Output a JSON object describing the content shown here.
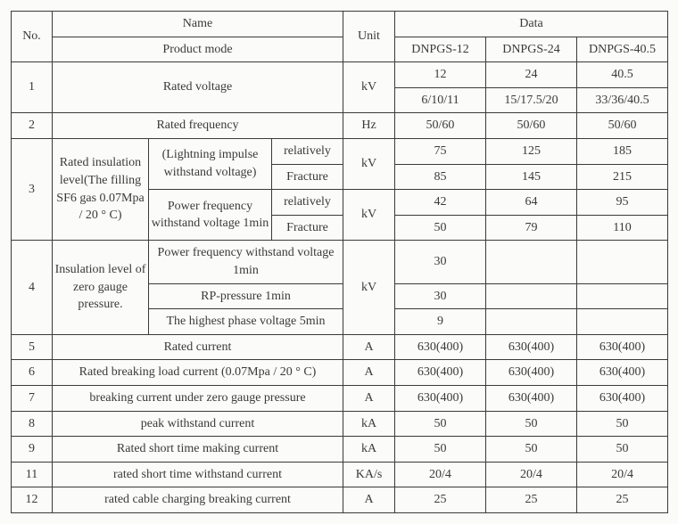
{
  "header": {
    "no": "No.",
    "name": "Name",
    "product_mode": "Product mode",
    "unit": "Unit",
    "data": "Data",
    "models": [
      "DNPGS-12",
      "DNPGS-24",
      "DNPGS-40.5"
    ]
  },
  "rows": {
    "r1": {
      "no": "1",
      "name": "Rated voltage",
      "unit": "kV",
      "line1": [
        "12",
        "24",
        "40.5"
      ],
      "line2": [
        "6/10/11",
        "15/17.5/20",
        "33/36/40.5"
      ]
    },
    "r2": {
      "no": "2",
      "name": "Rated frequency",
      "unit": "Hz",
      "vals": [
        "50/60",
        "50/60",
        "50/60"
      ]
    },
    "r3": {
      "no": "3",
      "group": "Rated insulation level(The filling SF6 gas 0.07Mpa / 20 ° C)",
      "sub1": "(Lightning impulse withstand voltage)",
      "sub2": "Power frequency withstand voltage 1min",
      "rel": "relatively",
      "fra": "Fracture",
      "unit": "kV",
      "s1rel": [
        "75",
        "125",
        "185"
      ],
      "s1fra": [
        "85",
        "145",
        "215"
      ],
      "s2rel": [
        "42",
        "64",
        "95"
      ],
      "s2fra": [
        "50",
        "79",
        "110"
      ]
    },
    "r4": {
      "no": "4",
      "group": "Insulation level of zero gauge pressure.",
      "sub1": "Power frequency withstand voltage 1min",
      "sub2": "RP-pressure 1min",
      "sub3": "The highest phase voltage 5min",
      "unit": "kV",
      "v1": [
        "30",
        "",
        ""
      ],
      "v2": [
        "30",
        "",
        ""
      ],
      "v3": [
        "9",
        "",
        ""
      ]
    },
    "r5": {
      "no": "5",
      "name": "Rated current",
      "unit": "A",
      "vals": [
        "630(400)",
        "630(400)",
        "630(400)"
      ]
    },
    "r6": {
      "no": "6",
      "name": "Rated breaking load current (0.07Mpa / 20 ° C)",
      "unit": "A",
      "vals": [
        "630(400)",
        "630(400)",
        "630(400)"
      ]
    },
    "r7": {
      "no": "7",
      "name": "breaking current under zero gauge pressure",
      "unit": "A",
      "vals": [
        "630(400)",
        "630(400)",
        "630(400)"
      ]
    },
    "r8": {
      "no": "8",
      "name": "peak withstand current",
      "unit": "kA",
      "vals": [
        "50",
        "50",
        "50"
      ]
    },
    "r9": {
      "no": "9",
      "name": "Rated short time making current",
      "unit": "kA",
      "vals": [
        "50",
        "50",
        "50"
      ]
    },
    "r11": {
      "no": "11",
      "name": "rated short time withstand current",
      "unit": "KA/s",
      "vals": [
        "20/4",
        "20/4",
        "20/4"
      ]
    },
    "r12": {
      "no": "12",
      "name": "rated cable charging breaking current",
      "unit": "A",
      "vals": [
        "25",
        "25",
        "25"
      ]
    }
  }
}
